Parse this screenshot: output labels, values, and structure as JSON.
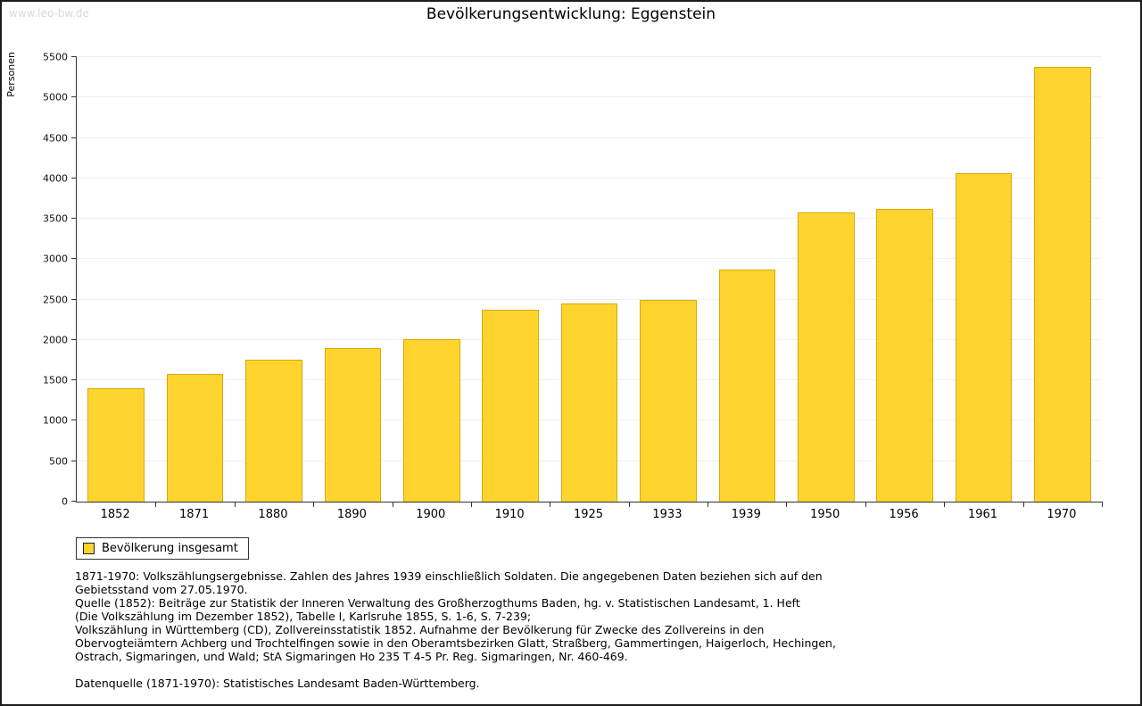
{
  "watermark": "www.leo-bw.de",
  "title": "Bevölkerungsentwicklung: Eggenstein",
  "chart_data": {
    "type": "bar",
    "title": "Bevölkerungsentwicklung: Eggenstein",
    "xlabel": "",
    "ylabel": "Personen",
    "ylim": [
      0,
      5500
    ],
    "ytick_step": 500,
    "grid": true,
    "bar_color": "#FFD42E",
    "legend_position": "bottom-left",
    "categories": [
      "1852",
      "1871",
      "1880",
      "1890",
      "1900",
      "1910",
      "1925",
      "1933",
      "1939",
      "1950",
      "1956",
      "1961",
      "1970"
    ],
    "values": [
      1400,
      1580,
      1760,
      1900,
      2010,
      2370,
      2450,
      2500,
      2870,
      3580,
      3620,
      4060,
      5380
    ],
    "series_name": "Bevölkerung insgesamt"
  },
  "legend": {
    "label": "Bevölkerung insgesamt"
  },
  "footnotes": {
    "lines": [
      "1871-1970: Volkszählungsergebnisse. Zahlen des Jahres 1939 einschließlich Soldaten. Die angegebenen Daten beziehen sich auf den",
      "Gebietsstand vom 27.05.1970.",
      "Quelle (1852): Beiträge zur Statistik der Inneren Verwaltung des Großherzogthums Baden, hg. v. Statistischen Landesamt, 1. Heft",
      "(Die Volkszählung im Dezember 1852), Tabelle I, Karlsruhe 1855, S. 1-6, S. 7-239;",
      "Volkszählung in Württemberg (CD), Zollvereinsstatistik 1852. Aufnahme der Bevölkerung für Zwecke des Zollvereins in den",
      "Obervogteiämtern Achberg und Trochtelfingen sowie in den Oberamtsbezirken Glatt, Straßberg, Gammertingen, Haigerloch, Hechingen,",
      "Ostrach, Sigmaringen, und Wald; StA Sigmaringen Ho 235 T 4-5 Pr. Reg. Sigmaringen, Nr. 460-469.",
      "",
      "Datenquelle (1871-1970): Statistisches Landesamt Baden-Württemberg."
    ]
  }
}
